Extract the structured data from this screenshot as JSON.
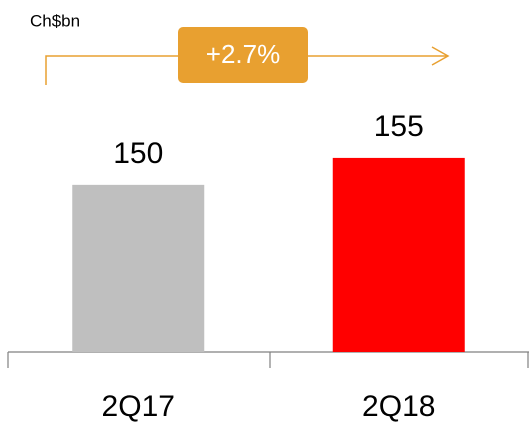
{
  "chart_data": {
    "type": "bar",
    "unit_label": "Ch$bn",
    "annotation": "+2.7%",
    "categories": [
      "2Q17",
      "2Q18"
    ],
    "values": [
      150,
      155
    ],
    "colors": [
      "#bfbfbf",
      "#ff0000"
    ],
    "ylim": [
      119,
      165
    ]
  }
}
